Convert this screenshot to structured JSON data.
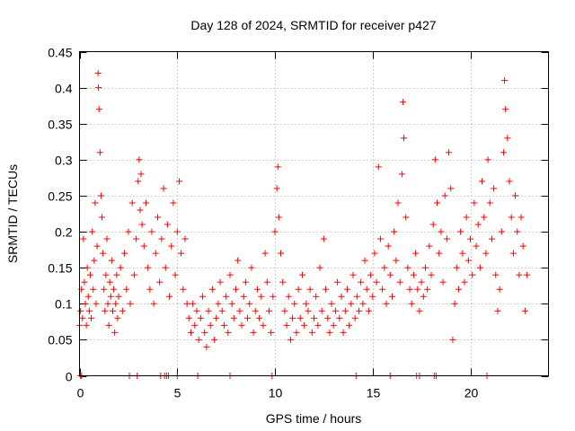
{
  "chart_data": {
    "type": "scatter",
    "title": "Day 128 of 2024, SRMTID for receiver p427",
    "xlabel": "GPS time / hours",
    "ylabel": "SRMTID / TECUs",
    "xlim": [
      0,
      24
    ],
    "ylim": [
      0,
      0.45
    ],
    "x_ticks": [
      0,
      5,
      10,
      15,
      20
    ],
    "x_tick_labels": [
      "0",
      "5",
      "10",
      "15",
      "20"
    ],
    "y_ticks": [
      0,
      0.05,
      0.1,
      0.15,
      0.2,
      0.25,
      0.3,
      0.35,
      0.4,
      0.45
    ],
    "y_tick_labels": [
      "0",
      "0.05",
      "0.1",
      "0.15",
      "0.2",
      "0.25",
      "0.3",
      "0.35",
      "0.4",
      "0.45"
    ],
    "grid": true,
    "marker": "+",
    "color": "#ff0000",
    "series": [
      {
        "name": "SRMTID",
        "points": [
          [
            0.0,
            0.07
          ],
          [
            0.05,
            0.09
          ],
          [
            0.1,
            0.12
          ],
          [
            0.15,
            0.08
          ],
          [
            0.2,
            0.19
          ],
          [
            0.25,
            0.13
          ],
          [
            0.3,
            0.1
          ],
          [
            0.35,
            0.07
          ],
          [
            0.4,
            0.15
          ],
          [
            0.45,
            0.11
          ],
          [
            0.5,
            0.09
          ],
          [
            0.55,
            0.14
          ],
          [
            0.6,
            0.08
          ],
          [
            0.65,
            0.2
          ],
          [
            0.7,
            0.12
          ],
          [
            0.75,
            0.16
          ],
          [
            0.8,
            0.24
          ],
          [
            0.85,
            0.1
          ],
          [
            0.9,
            0.18
          ],
          [
            0.95,
            0.42
          ],
          [
            0.97,
            0.4
          ],
          [
            1.0,
            0.37
          ],
          [
            1.05,
            0.31
          ],
          [
            1.1,
            0.25
          ],
          [
            1.15,
            0.22
          ],
          [
            1.2,
            0.17
          ],
          [
            1.25,
            0.12
          ],
          [
            1.3,
            0.09
          ],
          [
            1.35,
            0.14
          ],
          [
            1.4,
            0.19
          ],
          [
            1.45,
            0.1
          ],
          [
            1.5,
            0.07
          ],
          [
            1.55,
            0.13
          ],
          [
            1.6,
            0.11
          ],
          [
            1.65,
            0.16
          ],
          [
            1.7,
            0.09
          ],
          [
            1.75,
            0.12
          ],
          [
            1.8,
            0.06
          ],
          [
            1.85,
            0.1
          ],
          [
            1.9,
            0.14
          ],
          [
            1.95,
            0.08
          ],
          [
            2.0,
            0.11
          ],
          [
            2.1,
            0.15
          ],
          [
            2.2,
            0.09
          ],
          [
            2.3,
            0.17
          ],
          [
            2.4,
            0.12
          ],
          [
            2.5,
            0.2
          ],
          [
            2.6,
            0.1
          ],
          [
            2.7,
            0.24
          ],
          [
            2.8,
            0.14
          ],
          [
            2.9,
            0.19
          ],
          [
            3.0,
            0.27
          ],
          [
            3.05,
            0.3
          ],
          [
            3.1,
            0.23
          ],
          [
            3.15,
            0.28
          ],
          [
            3.2,
            0.21
          ],
          [
            3.3,
            0.18
          ],
          [
            3.4,
            0.24
          ],
          [
            3.5,
            0.15
          ],
          [
            3.6,
            0.12
          ],
          [
            3.7,
            0.2
          ],
          [
            3.8,
            0.1
          ],
          [
            3.9,
            0.17
          ],
          [
            4.0,
            0.22
          ],
          [
            4.1,
            0.13
          ],
          [
            4.2,
            0.19
          ],
          [
            4.3,
            0.26
          ],
          [
            4.4,
            0.15
          ],
          [
            4.5,
            0.21
          ],
          [
            4.6,
            0.11
          ],
          [
            4.7,
            0.18
          ],
          [
            4.8,
            0.24
          ],
          [
            4.9,
            0.14
          ],
          [
            5.0,
            0.2
          ],
          [
            5.1,
            0.27
          ],
          [
            5.2,
            0.17
          ],
          [
            5.3,
            0.12
          ],
          [
            5.4,
            0.19
          ],
          [
            5.5,
            0.1
          ],
          [
            5.6,
            0.08
          ],
          [
            5.7,
            0.06
          ],
          [
            5.8,
            0.1
          ],
          [
            5.9,
            0.07
          ],
          [
            6.0,
            0.09
          ],
          [
            6.1,
            0.05
          ],
          [
            6.2,
            0.08
          ],
          [
            6.3,
            0.11
          ],
          [
            6.4,
            0.06
          ],
          [
            6.5,
            0.04
          ],
          [
            6.6,
            0.09
          ],
          [
            6.7,
            0.07
          ],
          [
            6.8,
            0.12
          ],
          [
            6.9,
            0.05
          ],
          [
            7.0,
            0.08
          ],
          [
            7.1,
            0.1
          ],
          [
            7.2,
            0.13
          ],
          [
            7.3,
            0.09
          ],
          [
            7.4,
            0.07
          ],
          [
            7.5,
            0.11
          ],
          [
            7.6,
            0.06
          ],
          [
            7.7,
            0.14
          ],
          [
            7.8,
            0.1
          ],
          [
            7.9,
            0.08
          ],
          [
            8.0,
            0.12
          ],
          [
            8.1,
            0.16
          ],
          [
            8.2,
            0.09
          ],
          [
            8.3,
            0.07
          ],
          [
            8.4,
            0.11
          ],
          [
            8.5,
            0.13
          ],
          [
            8.6,
            0.08
          ],
          [
            8.7,
            0.1
          ],
          [
            8.8,
            0.15
          ],
          [
            8.9,
            0.06
          ],
          [
            9.0,
            0.09
          ],
          [
            9.1,
            0.12
          ],
          [
            9.2,
            0.08
          ],
          [
            9.3,
            0.11
          ],
          [
            9.4,
            0.07
          ],
          [
            9.5,
            0.17
          ],
          [
            9.6,
            0.13
          ],
          [
            9.7,
            0.09
          ],
          [
            9.8,
            0.06
          ],
          [
            9.9,
            0.11
          ],
          [
            10.0,
            0.2
          ],
          [
            10.1,
            0.26
          ],
          [
            10.15,
            0.29
          ],
          [
            10.2,
            0.22
          ],
          [
            10.3,
            0.17
          ],
          [
            10.4,
            0.13
          ],
          [
            10.5,
            0.09
          ],
          [
            10.6,
            0.07
          ],
          [
            10.7,
            0.11
          ],
          [
            10.8,
            0.05
          ],
          [
            10.9,
            0.08
          ],
          [
            11.0,
            0.1
          ],
          [
            11.1,
            0.06
          ],
          [
            11.2,
            0.12
          ],
          [
            11.3,
            0.08
          ],
          [
            11.4,
            0.14
          ],
          [
            11.5,
            0.07
          ],
          [
            11.6,
            0.1
          ],
          [
            11.7,
            0.09
          ],
          [
            11.8,
            0.12
          ],
          [
            11.9,
            0.06
          ],
          [
            12.0,
            0.08
          ],
          [
            12.1,
            0.11
          ],
          [
            12.2,
            0.07
          ],
          [
            12.3,
            0.15
          ],
          [
            12.4,
            0.09
          ],
          [
            12.5,
            0.19
          ],
          [
            12.6,
            0.12
          ],
          [
            12.7,
            0.08
          ],
          [
            12.8,
            0.06
          ],
          [
            12.9,
            0.1
          ],
          [
            13.0,
            0.07
          ],
          [
            13.1,
            0.09
          ],
          [
            13.2,
            0.13
          ],
          [
            13.3,
            0.08
          ],
          [
            13.4,
            0.11
          ],
          [
            13.5,
            0.06
          ],
          [
            13.6,
            0.09
          ],
          [
            13.7,
            0.12
          ],
          [
            13.8,
            0.07
          ],
          [
            13.9,
            0.1
          ],
          [
            14.0,
            0.14
          ],
          [
            14.1,
            0.08
          ],
          [
            14.2,
            0.11
          ],
          [
            14.3,
            0.09
          ],
          [
            14.4,
            0.13
          ],
          [
            14.5,
            0.1
          ],
          [
            14.6,
            0.16
          ],
          [
            14.7,
            0.12
          ],
          [
            14.8,
            0.09
          ],
          [
            14.9,
            0.14
          ],
          [
            15.0,
            0.11
          ],
          [
            15.1,
            0.17
          ],
          [
            15.2,
            0.13
          ],
          [
            15.3,
            0.29
          ],
          [
            15.4,
            0.19
          ],
          [
            15.5,
            0.12
          ],
          [
            15.6,
            0.15
          ],
          [
            15.7,
            0.1
          ],
          [
            15.8,
            0.18
          ],
          [
            15.9,
            0.14
          ],
          [
            16.0,
            0.11
          ],
          [
            16.1,
            0.2
          ],
          [
            16.2,
            0.16
          ],
          [
            16.3,
            0.24
          ],
          [
            16.4,
            0.13
          ],
          [
            16.5,
            0.28
          ],
          [
            16.55,
            0.38
          ],
          [
            16.6,
            0.33
          ],
          [
            16.7,
            0.22
          ],
          [
            16.8,
            0.15
          ],
          [
            16.9,
            0.12
          ],
          [
            17.0,
            0.1
          ],
          [
            17.1,
            0.14
          ],
          [
            17.2,
            0.17
          ],
          [
            17.3,
            0.12
          ],
          [
            17.4,
            0.09
          ],
          [
            17.5,
            0.13
          ],
          [
            17.6,
            0.11
          ],
          [
            17.7,
            0.15
          ],
          [
            17.8,
            0.12
          ],
          [
            17.9,
            0.18
          ],
          [
            18.0,
            0.14
          ],
          [
            18.1,
            0.21
          ],
          [
            18.2,
            0.3
          ],
          [
            18.3,
            0.24
          ],
          [
            18.4,
            0.17
          ],
          [
            18.5,
            0.2
          ],
          [
            18.6,
            0.13
          ],
          [
            18.7,
            0.25
          ],
          [
            18.8,
            0.19
          ],
          [
            18.9,
            0.31
          ],
          [
            19.0,
            0.26
          ],
          [
            19.1,
            0.05
          ],
          [
            19.2,
            0.1
          ],
          [
            19.3,
            0.15
          ],
          [
            19.4,
            0.12
          ],
          [
            19.5,
            0.2
          ],
          [
            19.6,
            0.17
          ],
          [
            19.7,
            0.13
          ],
          [
            19.8,
            0.22
          ],
          [
            19.9,
            0.16
          ],
          [
            20.0,
            0.19
          ],
          [
            20.1,
            0.14
          ],
          [
            20.2,
            0.24
          ],
          [
            20.3,
            0.18
          ],
          [
            20.4,
            0.21
          ],
          [
            20.5,
            0.15
          ],
          [
            20.6,
            0.27
          ],
          [
            20.7,
            0.22
          ],
          [
            20.8,
            0.17
          ],
          [
            20.9,
            0.3
          ],
          [
            21.0,
            0.24
          ],
          [
            21.1,
            0.19
          ],
          [
            21.2,
            0.26
          ],
          [
            21.3,
            0.14
          ],
          [
            21.4,
            0.09
          ],
          [
            21.5,
            0.12
          ],
          [
            21.6,
            0.2
          ],
          [
            21.7,
            0.31
          ],
          [
            21.75,
            0.41
          ],
          [
            21.8,
            0.37
          ],
          [
            21.9,
            0.33
          ],
          [
            22.0,
            0.27
          ],
          [
            22.1,
            0.22
          ],
          [
            22.2,
            0.17
          ],
          [
            22.3,
            0.25
          ],
          [
            22.4,
            0.2
          ],
          [
            22.5,
            0.14
          ],
          [
            22.6,
            0.22
          ],
          [
            22.7,
            0.18
          ],
          [
            22.8,
            0.09
          ],
          [
            22.9,
            0.14
          ]
        ]
      }
    ],
    "zero_points_x": [
      0.05,
      0.1,
      2.55,
      2.95,
      4.15,
      4.35,
      4.45,
      4.55,
      5.0,
      6.05,
      7.7,
      9.85,
      14.15,
      15.9,
      17.25,
      17.4,
      18.15,
      18.25,
      20.85
    ]
  }
}
